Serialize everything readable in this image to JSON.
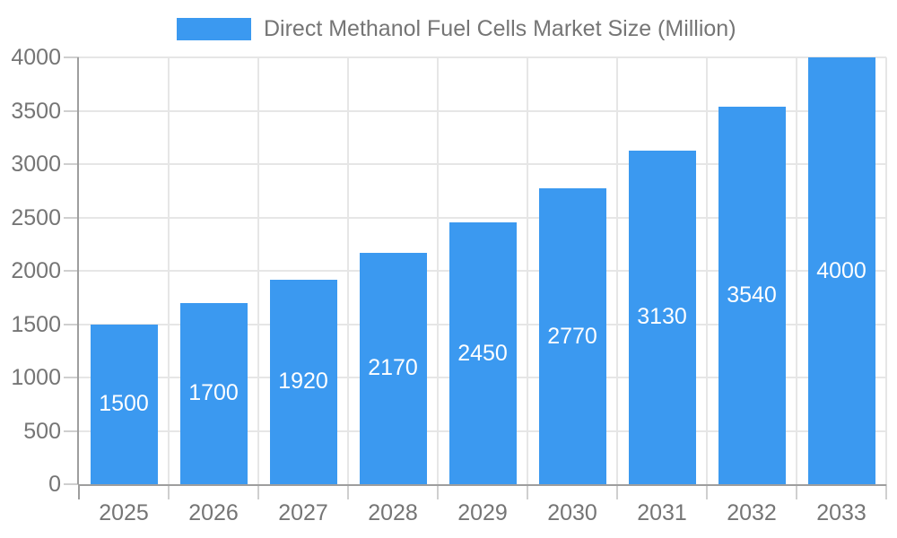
{
  "chart_data": {
    "type": "bar",
    "title": "Direct Methanol Fuel Cells Market Size (Million)",
    "legend": {
      "position": "top",
      "entries": [
        "Direct Methanol Fuel Cells Market Size (Million)"
      ]
    },
    "categories": [
      "2025",
      "2026",
      "2027",
      "2028",
      "2029",
      "2030",
      "2031",
      "2032",
      "2033"
    ],
    "series": [
      {
        "name": "Direct Methanol Fuel Cells Market Size (Million)",
        "values": [
          1500,
          1700,
          1920,
          2170,
          2450,
          2770,
          3130,
          3540,
          4000
        ]
      }
    ],
    "bar_value_labels": [
      "1500",
      "1700",
      "1920",
      "2170",
      "2450",
      "2770",
      "3130",
      "3540",
      "4000"
    ],
    "xlabel": "",
    "ylabel": "",
    "ylim": [
      0,
      4000
    ],
    "yticks": [
      0,
      500,
      1000,
      1500,
      2000,
      2500,
      3000,
      3500,
      4000
    ],
    "grid": true,
    "value_label_position": "inside-center",
    "colors": {
      "bar_fill": "#3b99f0",
      "bar_value_text": "#ffffff",
      "axis_text": "#757575",
      "axis_line": "#9e9e9e",
      "gridline": "#e6e6e6",
      "tick": "#cfcfcf",
      "background": "#ffffff"
    }
  }
}
